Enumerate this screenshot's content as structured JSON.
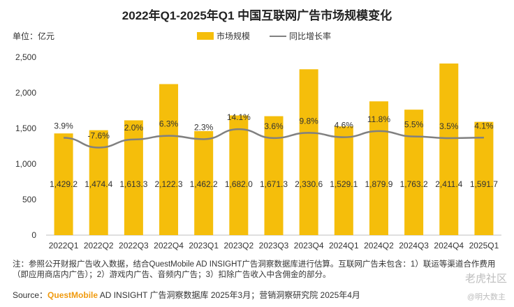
{
  "title": "2022年Q1-2025年Q1 中国互联网广告市场规模变化",
  "unit_label": "单位：亿元",
  "legend": {
    "bar": "市场规模",
    "line": "同比增长率"
  },
  "colors": {
    "bar": "#F5BE0B",
    "line": "#808080"
  },
  "note": "注：参照公开财报广告收入数据，结合QuestMobile AD INSIGHT广告洞察数据库进行估算。互联网广告未包含：1）联运等渠道合作费用（即应用商店内广告）；2）游戏内广告、音频内广告；3）扣除广告收入中含佣金的部分。",
  "source": {
    "prefix": "Source：",
    "brand": "QuestMobile",
    "text": " AD INSIGHT 广告洞察数据库 2025年3月；营销洞察研究院 2025年4月"
  },
  "watermark": "老虎社区",
  "watermark_handle": "@明大数主",
  "chart_data": {
    "type": "bar",
    "categories": [
      "2022Q1",
      "2022Q2",
      "2022Q3",
      "2022Q4",
      "2023Q1",
      "2023Q2",
      "2023Q3",
      "2023Q4",
      "2024Q1",
      "2024Q2",
      "2024Q3",
      "2024Q4",
      "2025Q1"
    ],
    "series": [
      {
        "name": "市场规模",
        "type": "bar",
        "values": [
          1429.2,
          1474.4,
          1613.3,
          2122.3,
          1462.2,
          1682.0,
          1671.3,
          2330.6,
          1529.1,
          1879.9,
          1763.2,
          2411.4,
          1591.7
        ],
        "labels": [
          "1,429.2",
          "1,474.4",
          "1,613.3",
          "2,122.3",
          "1,462.2",
          "1,682.0",
          "1,671.3",
          "2,330.6",
          "1,529.1",
          "1,879.9",
          "1,763.2",
          "2,411.4",
          "1,591.7"
        ]
      },
      {
        "name": "同比增长率",
        "type": "line",
        "values": [
          3.9,
          -7.6,
          2.0,
          6.3,
          2.3,
          14.1,
          3.6,
          9.8,
          4.6,
          11.8,
          5.5,
          3.5,
          4.1
        ],
        "labels": [
          "3.9%",
          "-7.6%",
          "2.0%",
          "6.3%",
          "2.3%",
          "14.1%",
          "3.6%",
          "9.8%",
          "4.6%",
          "11.8%",
          "5.5%",
          "3.5%",
          "4.1%"
        ]
      }
    ],
    "yticks": [
      "0",
      "500",
      "1,000",
      "1,500",
      "2,000",
      "2,500"
    ],
    "ylim": [
      0,
      2500
    ]
  }
}
